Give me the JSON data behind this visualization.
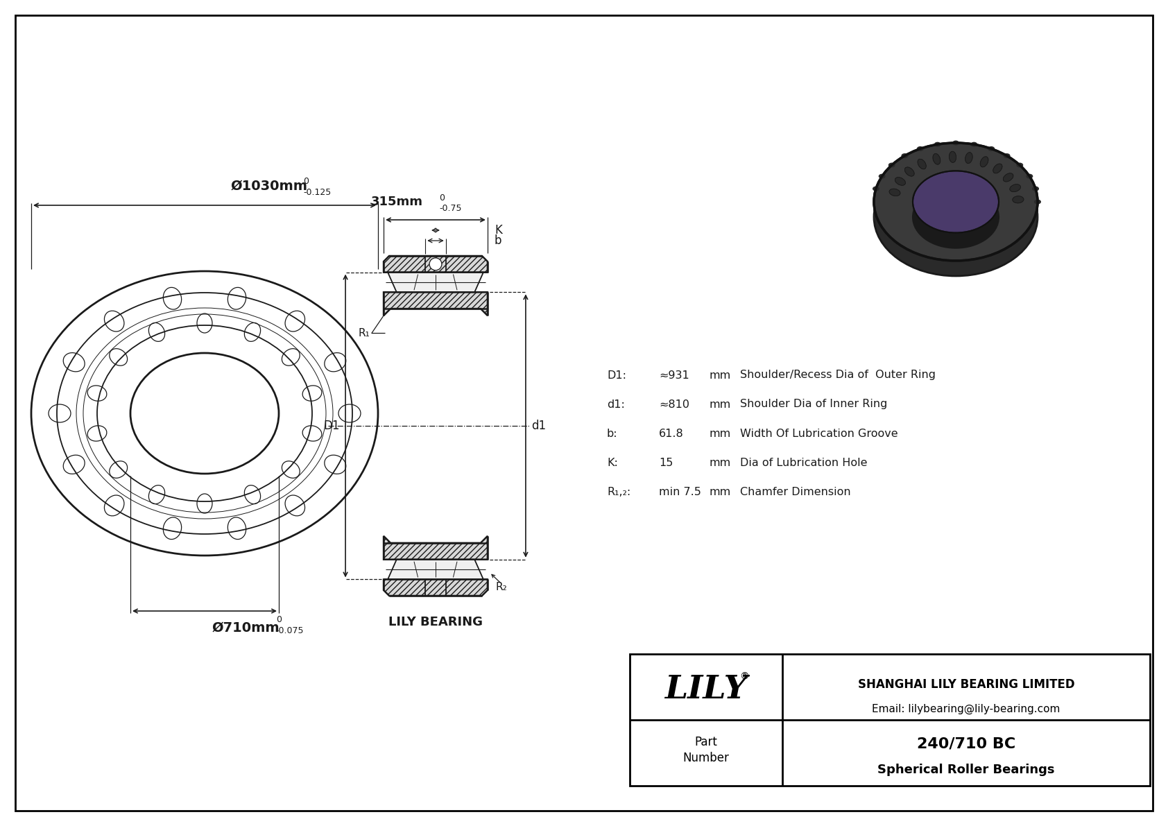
{
  "bg_color": "#ffffff",
  "line_color": "#1a1a1a",
  "outer_diam": "Ø1030mm",
  "outer_tol_upper": "0",
  "outer_tol_lower": "-0.125",
  "inner_diam": "Ø710mm",
  "inner_tol_upper": "0",
  "inner_tol_lower": "-0.075",
  "width_dim": "315mm",
  "width_tol_upper": "0",
  "width_tol_lower": "-0.75",
  "spec_D1_label": "D1:",
  "spec_D1_value": "≈931",
  "spec_D1_unit": "mm",
  "spec_D1_desc": "Shoulder/Recess Dia of  Outer Ring",
  "spec_d1_label": "d1:",
  "spec_d1_value": "≈810",
  "spec_d1_unit": "mm",
  "spec_d1_desc": "Shoulder Dia of Inner Ring",
  "spec_b_label": "b:",
  "spec_b_value": "61.8",
  "spec_b_unit": "mm",
  "spec_b_desc": "Width Of Lubrication Groove",
  "spec_K_label": "K:",
  "spec_K_value": "15",
  "spec_K_unit": "mm",
  "spec_K_desc": "Dia of Lubrication Hole",
  "spec_R_label": "R₁,₂:",
  "spec_R_value": "min 7.5",
  "spec_R_unit": "mm",
  "spec_R_desc": "Chamfer Dimension",
  "brand_label": "LILY BEARING",
  "lily_logo": "LILY",
  "company_name": "SHANGHAI LILY BEARING LIMITED",
  "company_email": "Email: lilybearing@lily-bearing.com",
  "part_number": "240/710 BC",
  "bearing_type": "Spherical Roller Bearings",
  "label_b": "b",
  "label_K": "K",
  "label_R1": "R₁",
  "label_R2": "R₂",
  "label_D1": "D1",
  "label_d1": "d1"
}
